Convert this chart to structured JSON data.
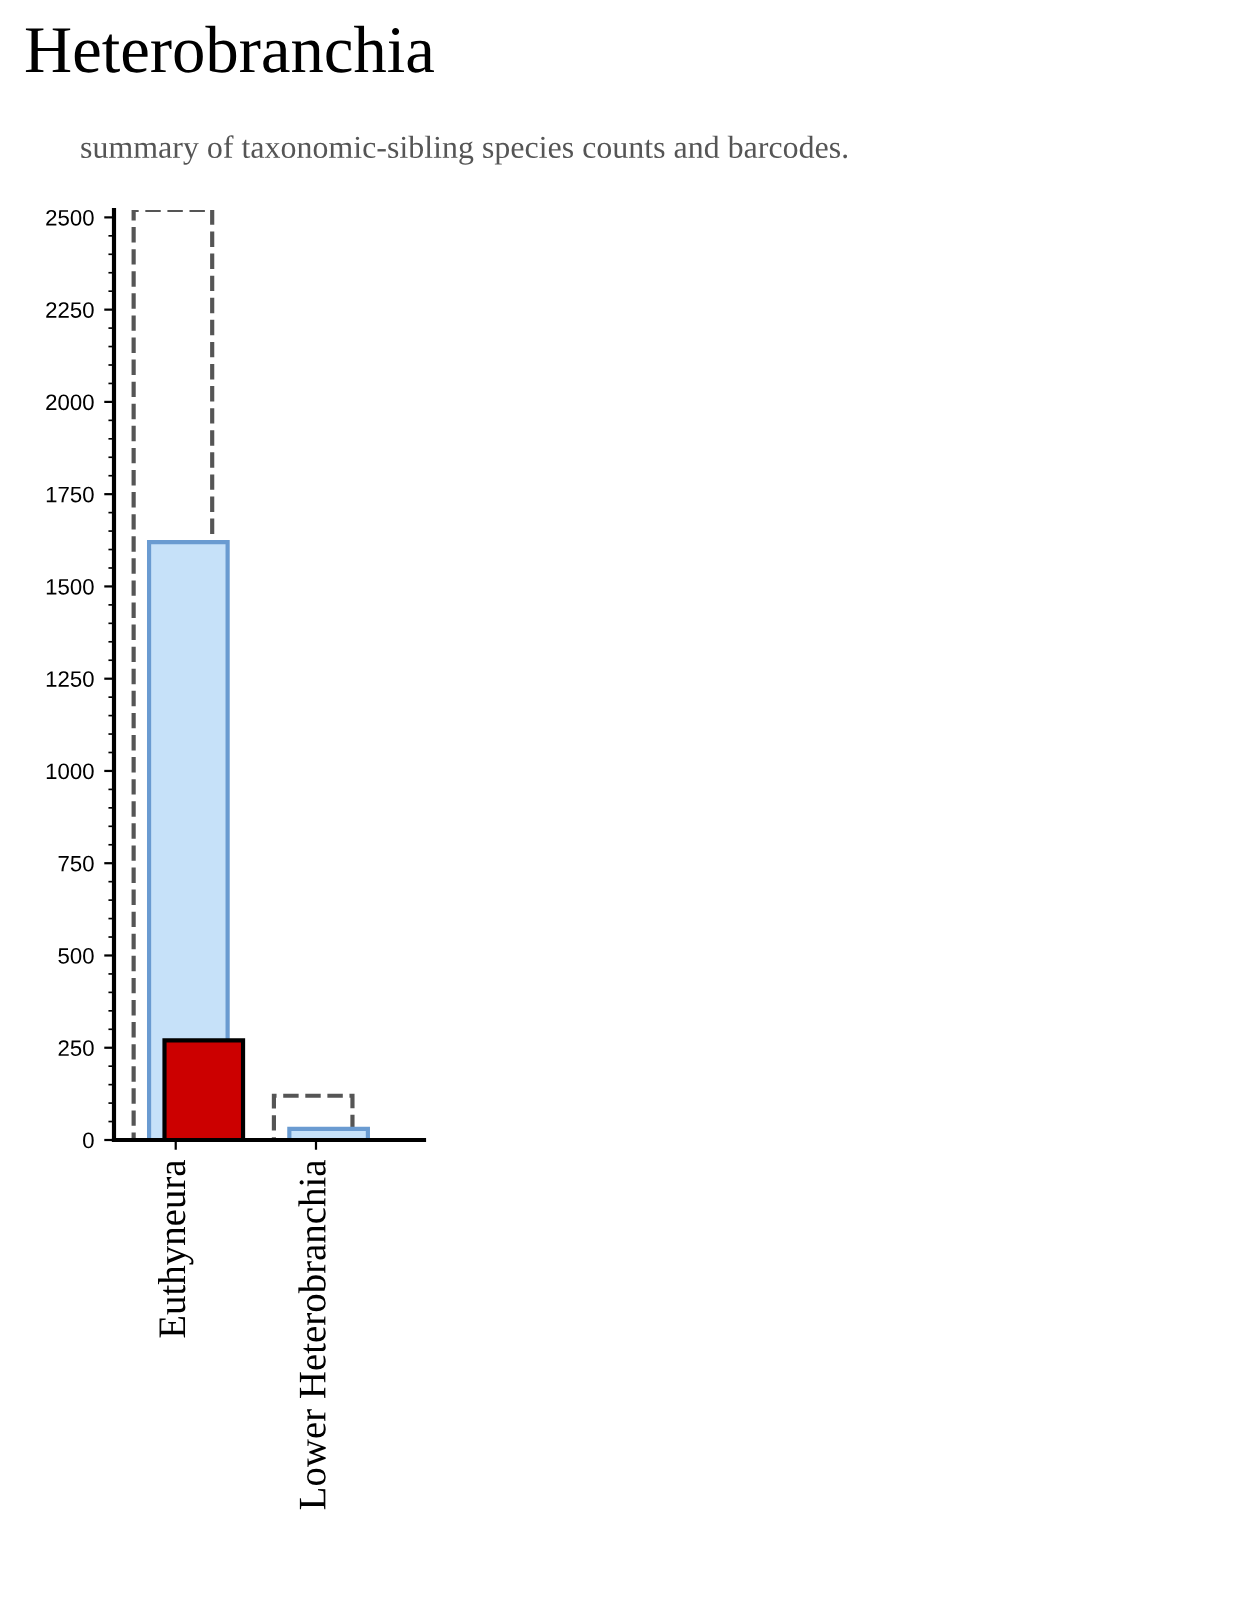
{
  "chart_data": {
    "type": "bar",
    "title": "Heterobranchia",
    "subtitle": "summary of taxonomic-sibling species counts and barcodes.",
    "categories": [
      "Euthyneura",
      "Lower Heterobranchia"
    ],
    "series": [
      {
        "color": "#555555",
        "values": [
          2520,
          120
        ],
        "line_style": "dashed"
      },
      {
        "color": "#c6e1f9",
        "values": [
          1620,
          30
        ]
      },
      {
        "color": "#cc0000",
        "values": [
          270,
          null
        ]
      }
    ],
    "ylim": [
      0,
      2520
    ],
    "yticks": [
      0,
      250,
      500,
      750,
      1000,
      1250,
      1500,
      1750,
      2000,
      2250,
      2500
    ],
    "grid": false,
    "legend": false
  }
}
